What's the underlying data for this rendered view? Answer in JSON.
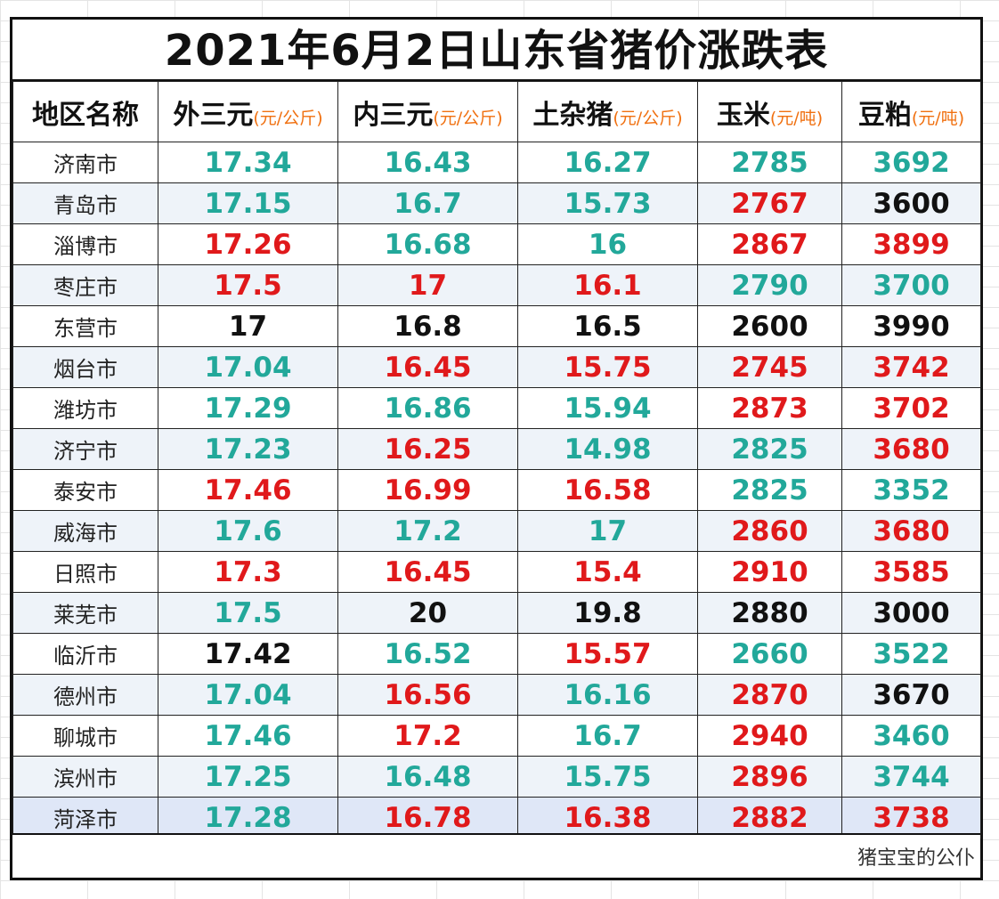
{
  "title": "2021年6月2日山东省猪价涨跌表",
  "headers": {
    "region": "地区名称",
    "waisanyuan": "外三元",
    "neisanyuan": "内三元",
    "tuzazhu": "土杂猪",
    "yumi": "玉米",
    "doupo": "豆粕"
  },
  "units": {
    "per_kg": "(元/公斤)",
    "per_ton": "(元/吨)"
  },
  "colors": {
    "green": "#22a89a",
    "red": "#e0191b",
    "black": "#111111",
    "unit_orange": "#f07010"
  },
  "rows": [
    {
      "region": "济南市",
      "cells": [
        [
          "17.34",
          "green"
        ],
        [
          "16.43",
          "green"
        ],
        [
          "16.27",
          "green"
        ],
        [
          "2785",
          "green"
        ],
        [
          "3692",
          "green"
        ]
      ]
    },
    {
      "region": "青岛市",
      "cells": [
        [
          "17.15",
          "green"
        ],
        [
          "16.7",
          "green"
        ],
        [
          "15.73",
          "green"
        ],
        [
          "2767",
          "red"
        ],
        [
          "3600",
          "black"
        ]
      ]
    },
    {
      "region": "淄博市",
      "cells": [
        [
          "17.26",
          "red"
        ],
        [
          "16.68",
          "green"
        ],
        [
          "16",
          "green"
        ],
        [
          "2867",
          "red"
        ],
        [
          "3899",
          "red"
        ]
      ]
    },
    {
      "region": "枣庄市",
      "cells": [
        [
          "17.5",
          "red"
        ],
        [
          "17",
          "red"
        ],
        [
          "16.1",
          "red"
        ],
        [
          "2790",
          "green"
        ],
        [
          "3700",
          "green"
        ]
      ]
    },
    {
      "region": "东营市",
      "cells": [
        [
          "17",
          "black"
        ],
        [
          "16.8",
          "black"
        ],
        [
          "16.5",
          "black"
        ],
        [
          "2600",
          "black"
        ],
        [
          "3990",
          "black"
        ]
      ]
    },
    {
      "region": "烟台市",
      "cells": [
        [
          "17.04",
          "green"
        ],
        [
          "16.45",
          "red"
        ],
        [
          "15.75",
          "red"
        ],
        [
          "2745",
          "red"
        ],
        [
          "3742",
          "red"
        ]
      ]
    },
    {
      "region": "潍坊市",
      "cells": [
        [
          "17.29",
          "green"
        ],
        [
          "16.86",
          "green"
        ],
        [
          "15.94",
          "green"
        ],
        [
          "2873",
          "red"
        ],
        [
          "3702",
          "red"
        ]
      ]
    },
    {
      "region": "济宁市",
      "cells": [
        [
          "17.23",
          "green"
        ],
        [
          "16.25",
          "red"
        ],
        [
          "14.98",
          "green"
        ],
        [
          "2825",
          "green"
        ],
        [
          "3680",
          "red"
        ]
      ]
    },
    {
      "region": "泰安市",
      "cells": [
        [
          "17.46",
          "red"
        ],
        [
          "16.99",
          "red"
        ],
        [
          "16.58",
          "red"
        ],
        [
          "2825",
          "green"
        ],
        [
          "3352",
          "green"
        ]
      ]
    },
    {
      "region": "威海市",
      "cells": [
        [
          "17.6",
          "green"
        ],
        [
          "17.2",
          "green"
        ],
        [
          "17",
          "green"
        ],
        [
          "2860",
          "red"
        ],
        [
          "3680",
          "red"
        ]
      ]
    },
    {
      "region": "日照市",
      "cells": [
        [
          "17.3",
          "red"
        ],
        [
          "16.45",
          "red"
        ],
        [
          "15.4",
          "red"
        ],
        [
          "2910",
          "red"
        ],
        [
          "3585",
          "red"
        ]
      ]
    },
    {
      "region": "莱芜市",
      "cells": [
        [
          "17.5",
          "green"
        ],
        [
          "20",
          "black"
        ],
        [
          "19.8",
          "black"
        ],
        [
          "2880",
          "black"
        ],
        [
          "3000",
          "black"
        ]
      ]
    },
    {
      "region": "临沂市",
      "cells": [
        [
          "17.42",
          "black"
        ],
        [
          "16.52",
          "green"
        ],
        [
          "15.57",
          "red"
        ],
        [
          "2660",
          "green"
        ],
        [
          "3522",
          "green"
        ]
      ]
    },
    {
      "region": "德州市",
      "cells": [
        [
          "17.04",
          "green"
        ],
        [
          "16.56",
          "red"
        ],
        [
          "16.16",
          "green"
        ],
        [
          "2870",
          "red"
        ],
        [
          "3670",
          "black"
        ]
      ]
    },
    {
      "region": "聊城市",
      "cells": [
        [
          "17.46",
          "green"
        ],
        [
          "17.2",
          "red"
        ],
        [
          "16.7",
          "green"
        ],
        [
          "2940",
          "red"
        ],
        [
          "3460",
          "green"
        ]
      ]
    },
    {
      "region": "滨州市",
      "cells": [
        [
          "17.25",
          "green"
        ],
        [
          "16.48",
          "green"
        ],
        [
          "15.75",
          "green"
        ],
        [
          "2896",
          "red"
        ],
        [
          "3744",
          "green"
        ]
      ]
    },
    {
      "region": "菏泽市",
      "cells": [
        [
          "17.28",
          "green"
        ],
        [
          "16.78",
          "red"
        ],
        [
          "16.38",
          "red"
        ],
        [
          "2882",
          "red"
        ],
        [
          "3738",
          "red"
        ]
      ]
    }
  ],
  "footer": "猪宝宝的公仆"
}
